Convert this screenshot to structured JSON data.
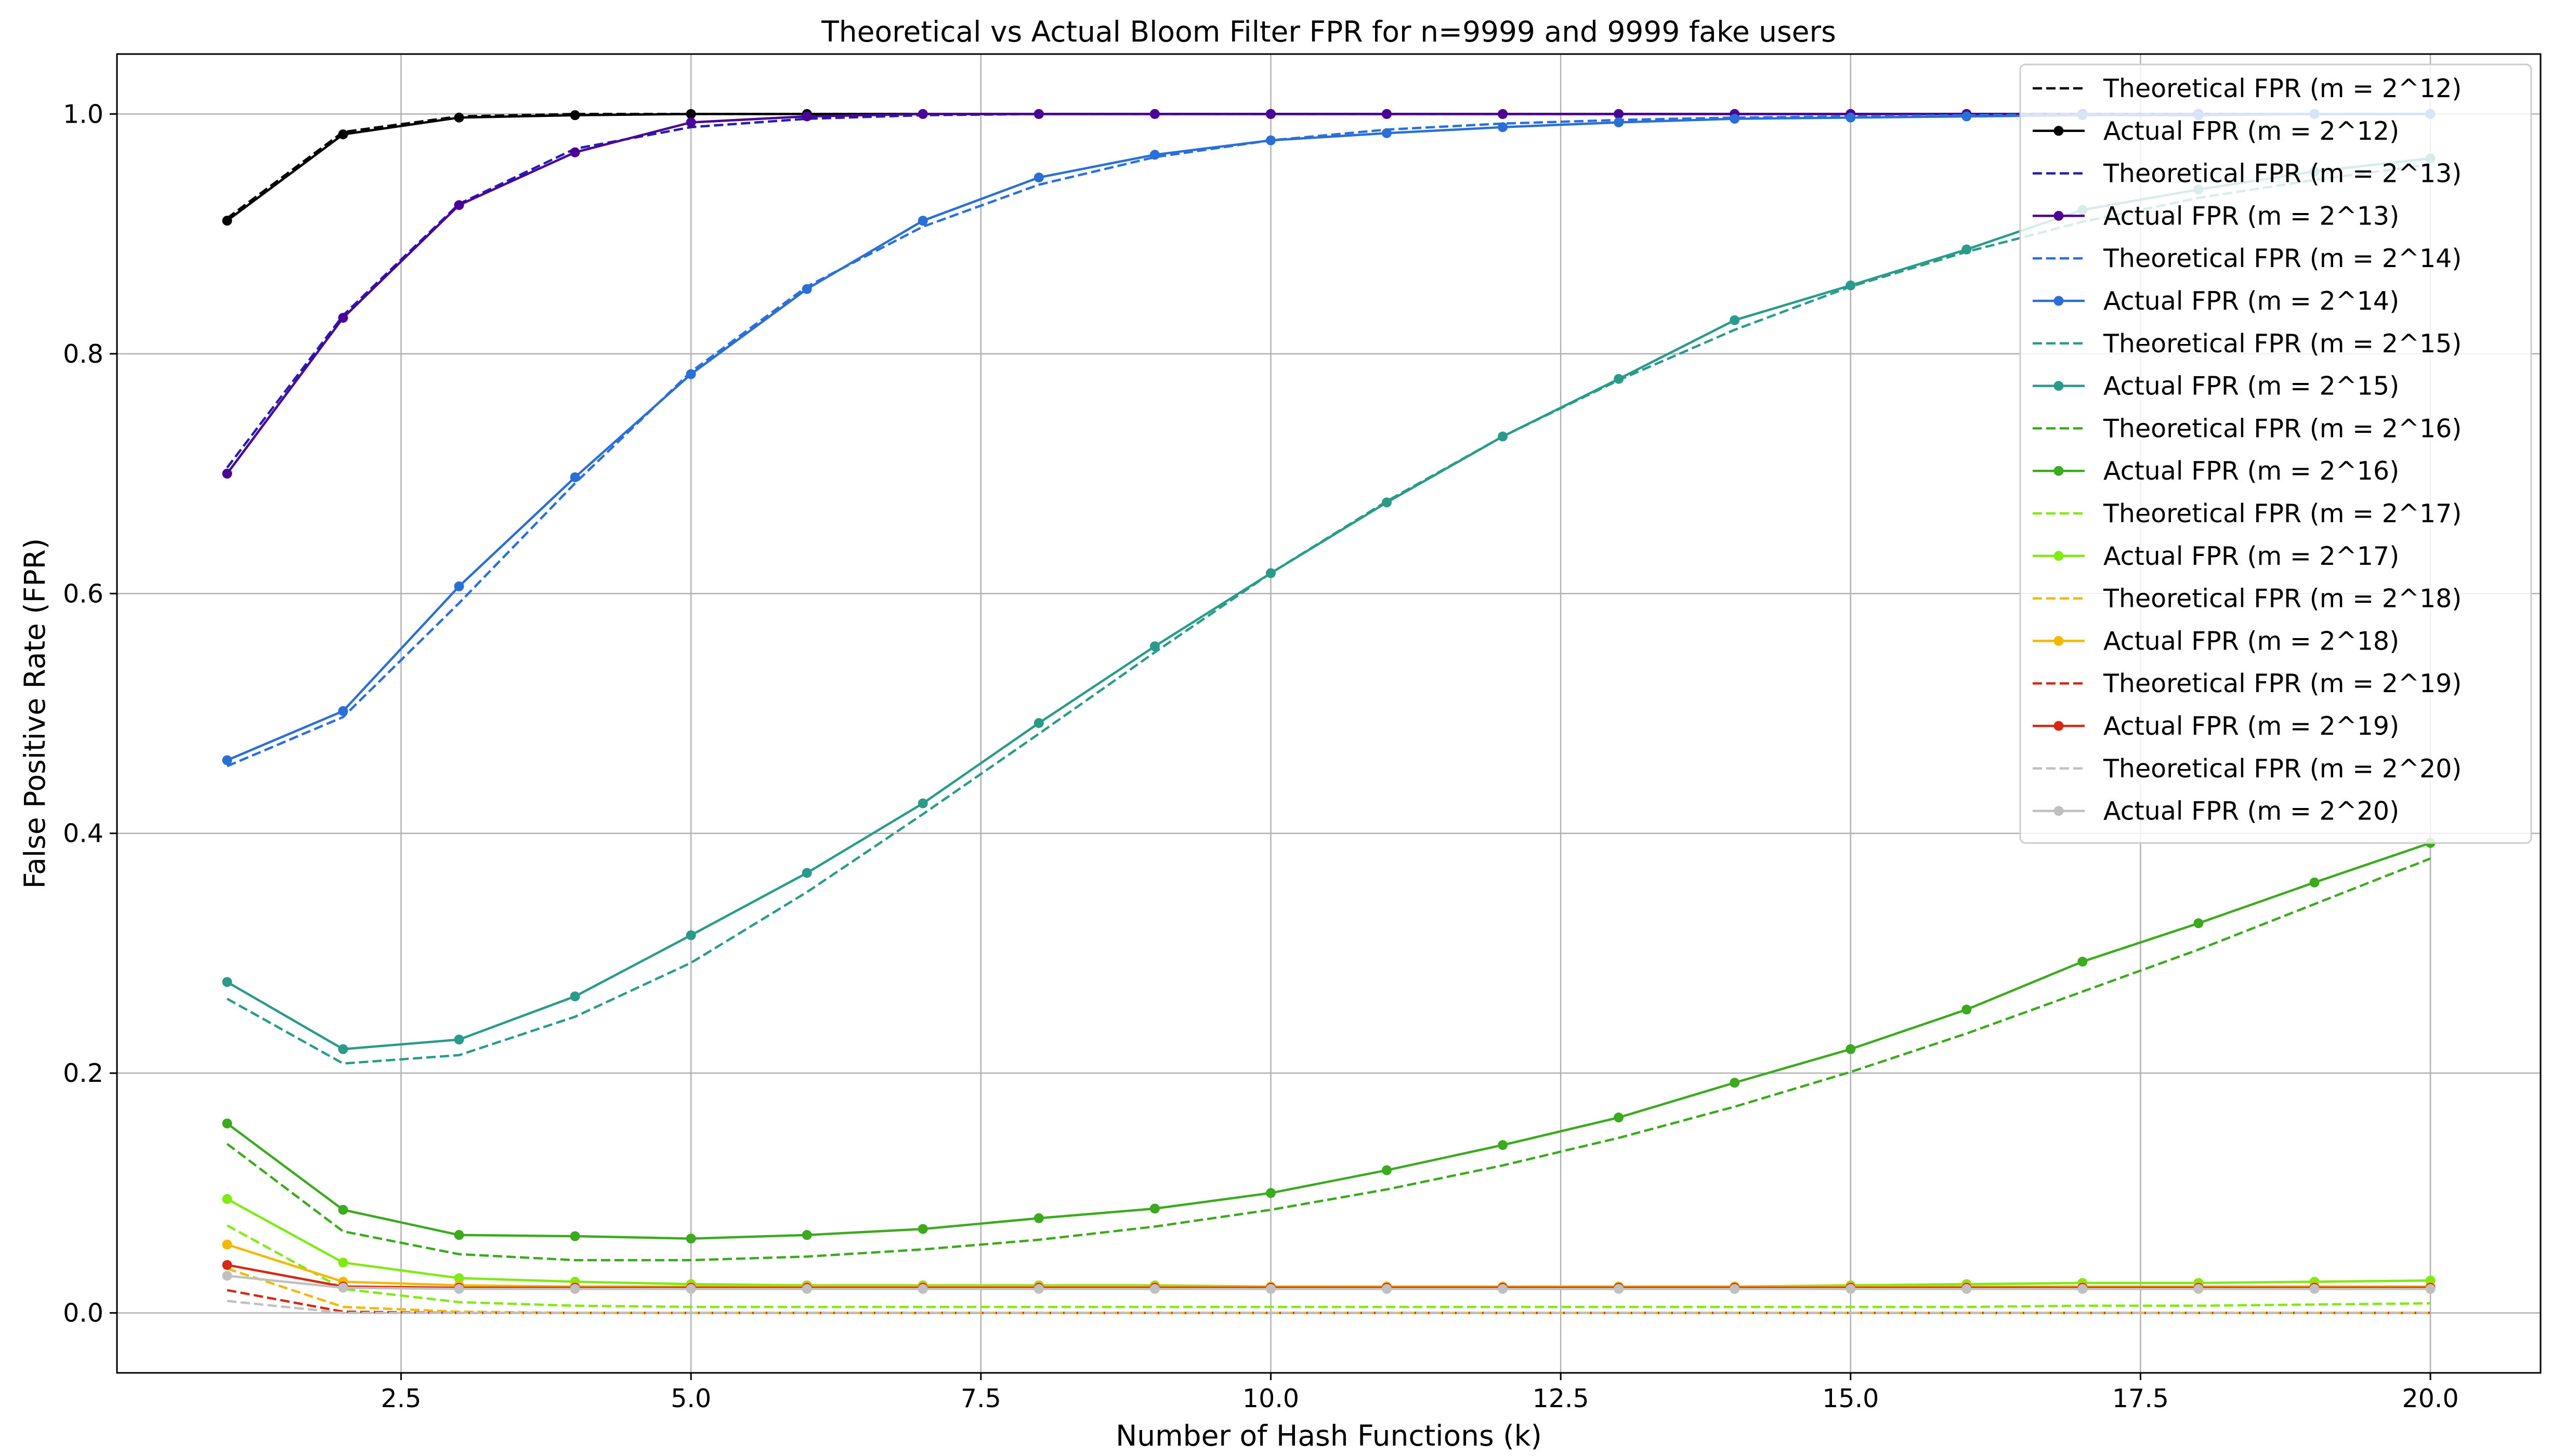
{
  "chart_data": {
    "type": "line",
    "title": "Theoretical vs Actual Bloom Filter FPR for n=9999 and 9999 fake users",
    "xlabel": "Number of Hash Functions (k)",
    "ylabel": "False Positive Rate (FPR)",
    "xlim": [
      0.05,
      20.95
    ],
    "ylim": [
      -0.05,
      1.05
    ],
    "x_ticks": [
      2.5,
      5.0,
      7.5,
      10.0,
      12.5,
      15.0,
      17.5,
      20.0
    ],
    "x_tick_labels": [
      "2.5",
      "5.0",
      "7.5",
      "10.0",
      "12.5",
      "15.0",
      "17.5",
      "20.0"
    ],
    "y_ticks": [
      0.0,
      0.2,
      0.4,
      0.6,
      0.8,
      1.0
    ],
    "y_tick_labels": [
      "0.0",
      "0.2",
      "0.4",
      "0.6",
      "0.8",
      "1.0"
    ],
    "grid": true,
    "legend_position": "top-right",
    "x": [
      1,
      2,
      3,
      4,
      5,
      6,
      7,
      8,
      9,
      10,
      11,
      12,
      13,
      14,
      15,
      16,
      17,
      18,
      19,
      20
    ],
    "series": [
      {
        "name": "Theoretical FPR (m = 2^12)",
        "style": "dashed",
        "color": "#000000",
        "values": [
          0.913,
          0.985,
          0.998,
          1.0,
          1.0,
          1.0,
          1.0,
          1.0,
          1.0,
          1.0,
          1.0,
          1.0,
          1.0,
          1.0,
          1.0,
          1.0,
          1.0,
          1.0,
          1.0,
          1.0
        ]
      },
      {
        "name": "Actual FPR (m = 2^12)",
        "style": "solid",
        "color": "#000000",
        "values": [
          0.911,
          0.983,
          0.997,
          0.999,
          1.0,
          1.0,
          1.0,
          1.0,
          1.0,
          1.0,
          1.0,
          1.0,
          1.0,
          1.0,
          1.0,
          1.0,
          1.0,
          1.0,
          1.0,
          1.0
        ]
      },
      {
        "name": "Theoretical FPR (m = 2^13)",
        "style": "dashed",
        "color": "#1f1fb4",
        "values": [
          0.705,
          0.832,
          0.925,
          0.971,
          0.989,
          0.996,
          0.999,
          1.0,
          1.0,
          1.0,
          1.0,
          1.0,
          1.0,
          1.0,
          1.0,
          1.0,
          1.0,
          1.0,
          1.0,
          1.0
        ]
      },
      {
        "name": "Actual FPR (m = 2^13)",
        "style": "solid",
        "color": "#4b0096",
        "values": [
          0.7,
          0.83,
          0.924,
          0.968,
          0.993,
          0.998,
          1.0,
          1.0,
          1.0,
          1.0,
          1.0,
          1.0,
          1.0,
          1.0,
          1.0,
          1.0,
          1.0,
          1.0,
          1.0,
          1.0
        ]
      },
      {
        "name": "Theoretical FPR (m = 2^14)",
        "style": "dashed",
        "color": "#2a6fe0",
        "values": [
          0.456,
          0.497,
          0.592,
          0.692,
          0.785,
          0.856,
          0.906,
          0.941,
          0.964,
          0.978,
          0.987,
          0.992,
          0.995,
          0.997,
          0.998,
          0.999,
          1.0,
          1.0,
          1.0,
          1.0
        ]
      },
      {
        "name": "Actual FPR (m = 2^14)",
        "style": "solid",
        "color": "#2a6fd6",
        "values": [
          0.461,
          0.502,
          0.606,
          0.697,
          0.783,
          0.854,
          0.911,
          0.947,
          0.966,
          0.978,
          0.984,
          0.989,
          0.993,
          0.996,
          0.997,
          0.998,
          0.999,
          0.999,
          1.0,
          1.0
        ]
      },
      {
        "name": "Theoretical FPR (m = 2^15)",
        "style": "dashed",
        "color": "#2a9a8a",
        "values": [
          0.262,
          0.208,
          0.215,
          0.247,
          0.292,
          0.351,
          0.416,
          0.483,
          0.551,
          0.617,
          0.677,
          0.731,
          0.778,
          0.82,
          0.856,
          0.885,
          0.91,
          0.93,
          0.945,
          0.958
        ]
      },
      {
        "name": "Actual FPR (m = 2^15)",
        "style": "solid",
        "color": "#2a9a8a",
        "values": [
          0.276,
          0.22,
          0.228,
          0.264,
          0.315,
          0.367,
          0.425,
          0.492,
          0.556,
          0.617,
          0.676,
          0.731,
          0.779,
          0.828,
          0.857,
          0.887,
          0.92,
          0.937,
          0.952,
          0.963
        ]
      },
      {
        "name": "Theoretical FPR (m = 2^16)",
        "style": "dashed",
        "color": "#3caa1e",
        "values": [
          0.141,
          0.068,
          0.049,
          0.044,
          0.044,
          0.047,
          0.053,
          0.061,
          0.072,
          0.086,
          0.103,
          0.123,
          0.146,
          0.172,
          0.201,
          0.233,
          0.268,
          0.303,
          0.341,
          0.379
        ]
      },
      {
        "name": "Actual FPR (m = 2^16)",
        "style": "solid",
        "color": "#3caa1e",
        "values": [
          0.158,
          0.086,
          0.065,
          0.064,
          0.062,
          0.065,
          0.07,
          0.079,
          0.087,
          0.1,
          0.119,
          0.14,
          0.163,
          0.192,
          0.22,
          0.253,
          0.293,
          0.325,
          0.359,
          0.392
        ]
      },
      {
        "name": "Theoretical FPR (m = 2^17)",
        "style": "dashed",
        "color": "#7fea14",
        "values": [
          0.073,
          0.02,
          0.009,
          0.006,
          0.005,
          0.005,
          0.005,
          0.005,
          0.005,
          0.005,
          0.005,
          0.005,
          0.005,
          0.005,
          0.005,
          0.005,
          0.006,
          0.006,
          0.007,
          0.008
        ]
      },
      {
        "name": "Actual FPR (m = 2^17)",
        "style": "solid",
        "color": "#7fea14",
        "values": [
          0.095,
          0.042,
          0.029,
          0.026,
          0.024,
          0.023,
          0.023,
          0.023,
          0.023,
          0.022,
          0.022,
          0.022,
          0.022,
          0.022,
          0.023,
          0.024,
          0.025,
          0.025,
          0.026,
          0.027
        ]
      },
      {
        "name": "Theoretical FPR (m = 2^18)",
        "style": "dashed",
        "color": "#f5b800",
        "values": [
          0.037,
          0.005,
          0.001,
          0.0,
          0.0,
          0.0,
          0.0,
          0.0,
          0.0,
          0.0,
          0.0,
          0.0,
          0.0,
          0.0,
          0.0,
          0.0,
          0.0,
          0.0,
          0.0,
          0.0
        ]
      },
      {
        "name": "Actual FPR (m = 2^18)",
        "style": "solid",
        "color": "#f5b800",
        "values": [
          0.057,
          0.026,
          0.023,
          0.022,
          0.022,
          0.022,
          0.022,
          0.022,
          0.022,
          0.022,
          0.022,
          0.022,
          0.022,
          0.022,
          0.022,
          0.022,
          0.022,
          0.022,
          0.022,
          0.022
        ]
      },
      {
        "name": "Theoretical FPR (m = 2^19)",
        "style": "dashed",
        "color": "#d42a14",
        "values": [
          0.019,
          0.001,
          0.0,
          0.0,
          0.0,
          0.0,
          0.0,
          0.0,
          0.0,
          0.0,
          0.0,
          0.0,
          0.0,
          0.0,
          0.0,
          0.0,
          0.0,
          0.0,
          0.0,
          0.0
        ]
      },
      {
        "name": "Actual FPR (m = 2^19)",
        "style": "solid",
        "color": "#d42a14",
        "values": [
          0.04,
          0.022,
          0.021,
          0.021,
          0.021,
          0.021,
          0.021,
          0.021,
          0.021,
          0.021,
          0.021,
          0.021,
          0.021,
          0.021,
          0.021,
          0.021,
          0.021,
          0.021,
          0.021,
          0.021
        ]
      },
      {
        "name": "Theoretical FPR (m = 2^20)",
        "style": "dashed",
        "color": "#c0c0c0",
        "values": [
          0.01,
          0.0,
          0.0,
          0.0,
          0.0,
          0.0,
          0.0,
          0.0,
          0.0,
          0.0,
          0.0,
          0.0,
          0.0,
          0.0,
          0.0,
          0.0,
          0.0,
          0.0,
          0.0,
          0.0
        ]
      },
      {
        "name": "Actual FPR (m = 2^20)",
        "style": "solid",
        "color": "#c0c0c0",
        "values": [
          0.031,
          0.021,
          0.02,
          0.02,
          0.02,
          0.02,
          0.02,
          0.02,
          0.02,
          0.02,
          0.02,
          0.02,
          0.02,
          0.02,
          0.02,
          0.02,
          0.02,
          0.02,
          0.02,
          0.02
        ]
      }
    ]
  }
}
